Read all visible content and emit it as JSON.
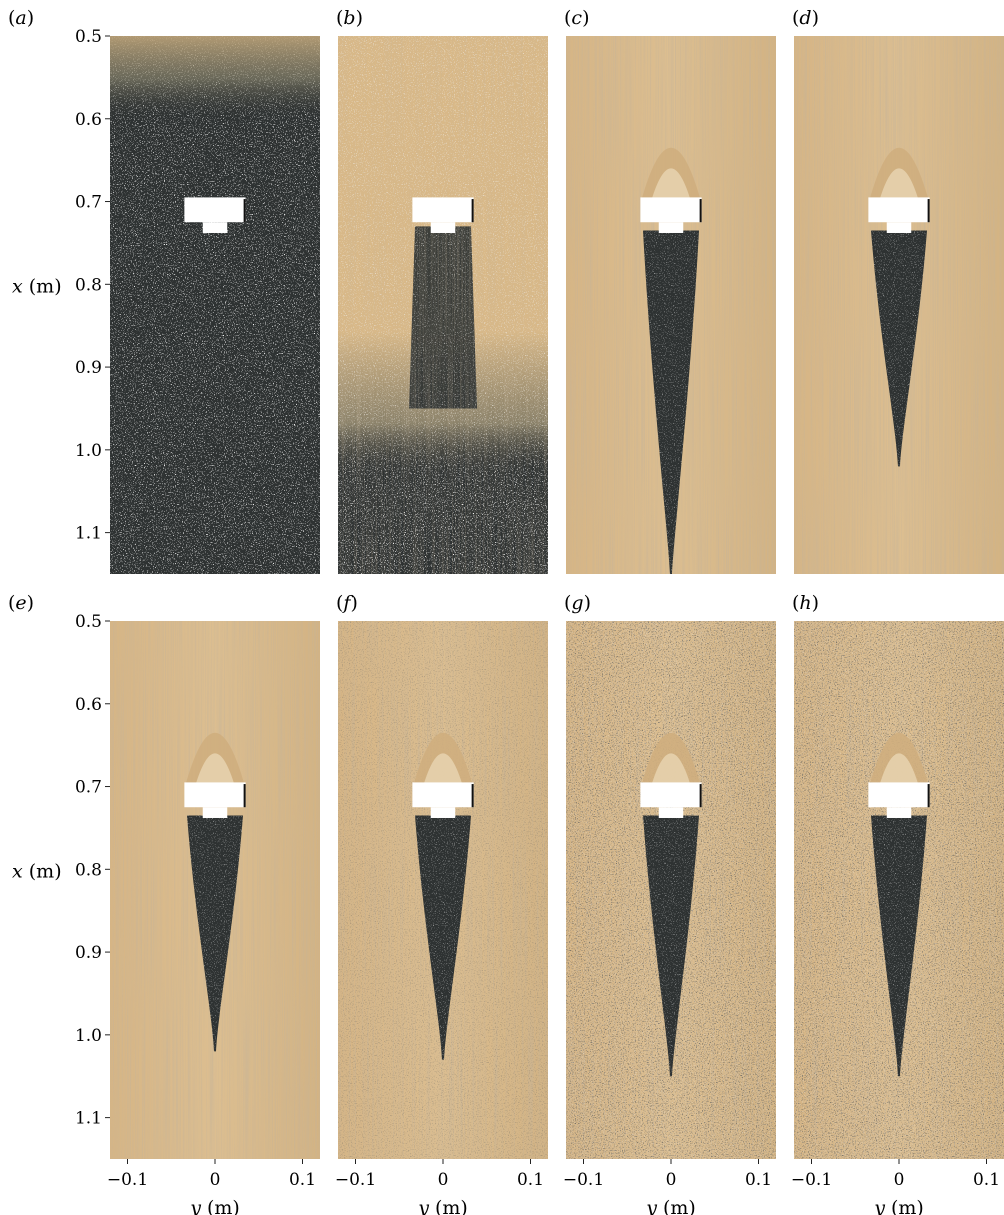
{
  "figure": {
    "rows": [
      {
        "ylabel": "x (m)",
        "yticks": [
          "0.5",
          "0.6",
          "0.7",
          "0.8",
          "0.9",
          "1.0",
          "1.1"
        ],
        "panels": [
          {
            "label": "(a)",
            "style": "uniform-dark"
          },
          {
            "label": "(b)",
            "style": "transition-dark"
          },
          {
            "label": "(c)",
            "style": "sand-wake"
          },
          {
            "label": "(d)",
            "style": "sand-wake"
          }
        ]
      },
      {
        "ylabel": "x (m)",
        "yticks": [
          "0.5",
          "0.6",
          "0.7",
          "0.8",
          "0.9",
          "1.0",
          "1.1"
        ],
        "xticks": [
          "−0.1",
          "0",
          "0.1"
        ],
        "xlabel": "y (m)",
        "panels": [
          {
            "label": "(e)",
            "style": "sand-wake"
          },
          {
            "label": "(f)",
            "style": "sand-grainy"
          },
          {
            "label": "(g)",
            "style": "speckled"
          },
          {
            "label": "(h)",
            "style": "speckled"
          }
        ]
      }
    ],
    "axis": {
      "x_data": [
        0.5,
        0.6,
        0.7,
        0.8,
        0.9,
        1.0,
        1.1
      ],
      "y_data": [
        -0.1,
        0,
        0.1
      ],
      "x_range": [
        0.5,
        1.15
      ],
      "y_range": [
        -0.12,
        0.12
      ]
    },
    "colors": {
      "sand": "#d9b988",
      "sand_dark": "#b89a6c",
      "dark_bed": "#2e3232",
      "speck": "#eeeeee",
      "obstacle": "#ffffff"
    }
  }
}
